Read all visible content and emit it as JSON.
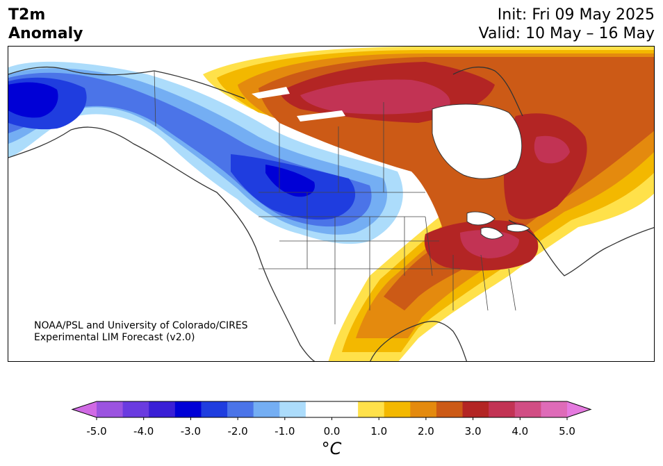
{
  "header": {
    "title_line1": "T2m",
    "title_line2": "Anomaly",
    "init_text": "Init: Fri 09 May 2025",
    "valid_text": "Valid: 10 May – 16 May"
  },
  "credit": {
    "line1": "NOAA/PSL and University of Colorado/CIRES",
    "line2": "Experimental LIM Forecast (v2.0)"
  },
  "colorbar": {
    "unit": "°C",
    "min": -5.0,
    "max": 5.0,
    "ticks": [
      "-5.0",
      "-4.0",
      "-3.0",
      "-2.0",
      "-1.0",
      "0.0",
      "1.0",
      "2.0",
      "3.0",
      "4.0",
      "5.0"
    ],
    "colors": [
      "#9b53e0",
      "#6a3be0",
      "#3a1fd6",
      "#0000d6",
      "#1f3ddf",
      "#4b74e8",
      "#74aef3",
      "#acdcfb",
      "#ffffff",
      "#ffffff",
      "#ffe14a",
      "#f3b800",
      "#e48a0e",
      "#cc5a16",
      "#b32524",
      "#c23354",
      "#d14d84",
      "#de6bb8"
    ],
    "under_color": "#d06ae4",
    "over_color": "#e57adf"
  },
  "map": {
    "region": "North America",
    "variable": "2m temperature anomaly",
    "features": [
      "warm anomaly over Great Lakes / Ohio Valley",
      "warm anomaly over Quebec / Labrador",
      "warm anomaly over Canadian Arctic",
      "cold anomaly over Alaska",
      "cold anomaly over western Canada / Pacific Northwest"
    ]
  }
}
